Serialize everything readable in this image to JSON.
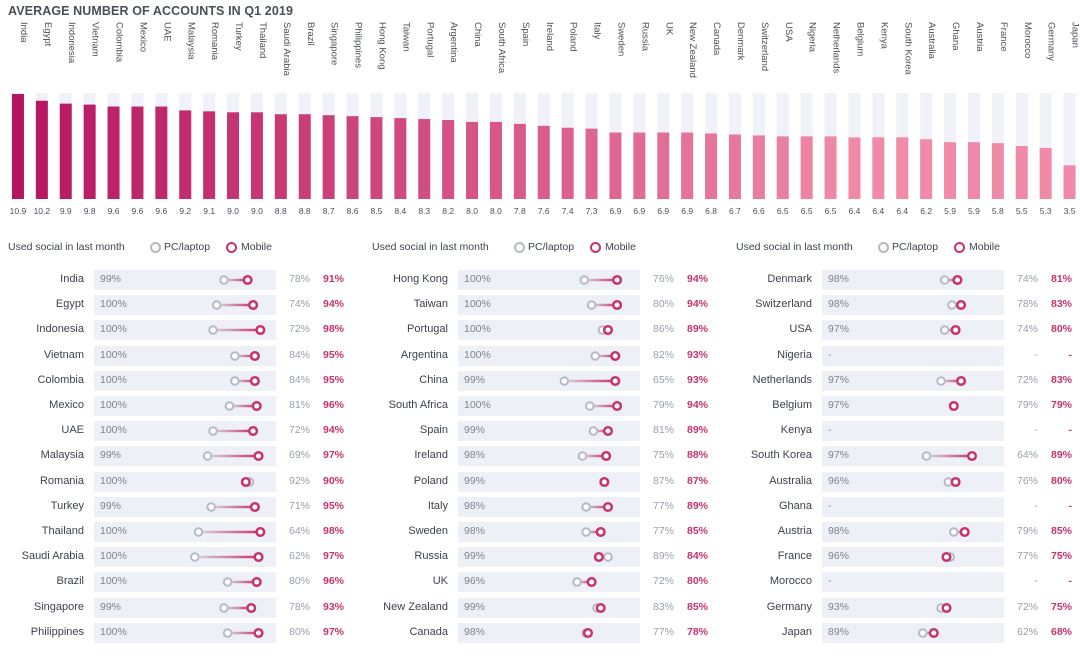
{
  "title": "AVERAGE NUMBER OF ACCOUNTS IN Q1 2019",
  "colors": {
    "bar_dark": "#b5155f",
    "bar_light": "#f08aa8",
    "bar_bg": "#f1f1fa",
    "mobile": "#c8336e",
    "pc": "#b5bac3",
    "track": "#eef0f8"
  },
  "chart_data": [
    {
      "type": "bar",
      "title": "AVERAGE NUMBER OF ACCOUNTS IN Q1 2019",
      "ylim": [
        0,
        10.9
      ],
      "categories": [
        "India",
        "Egypt",
        "Indonesia",
        "Vietnam",
        "Colombia",
        "Mexico",
        "UAE",
        "Malaysia",
        "Romania",
        "Turkey",
        "Thailand",
        "Saudi Arabia",
        "Brazil",
        "Singapore",
        "Philippines",
        "Hong Kong",
        "Taiwan",
        "Portugal",
        "Argentina",
        "China",
        "South Africa",
        "Spain",
        "Ireland",
        "Poland",
        "Italy",
        "Sweden",
        "Russia",
        "UK",
        "New Zealand",
        "Canada",
        "Denmark",
        "Switzerland",
        "USA",
        "Nigeria",
        "Netherlands",
        "Belgium",
        "Kenya",
        "South Korea",
        "Australia",
        "Ghana",
        "Austria",
        "France",
        "Morocco",
        "Germany",
        "Japan"
      ],
      "values": [
        10.9,
        10.2,
        9.9,
        9.8,
        9.6,
        9.6,
        9.6,
        9.2,
        9.1,
        9.0,
        9.0,
        8.8,
        8.8,
        8.7,
        8.6,
        8.5,
        8.4,
        8.3,
        8.2,
        8.0,
        8.0,
        7.8,
        7.6,
        7.4,
        7.3,
        6.9,
        6.9,
        6.9,
        6.9,
        6.8,
        6.7,
        6.6,
        6.5,
        6.5,
        6.5,
        6.4,
        6.4,
        6.4,
        6.2,
        5.9,
        5.9,
        5.8,
        5.5,
        5.3,
        3.5
      ],
      "labels": [
        "10.9",
        "10.2",
        "9.9",
        "9.8",
        "9.6",
        "9.6",
        "9.6",
        "9.2",
        "9.1",
        "9.0",
        "9.0",
        "8.8",
        "8.8",
        "8.7",
        "8.6",
        "8.5",
        "8.4",
        "8.3",
        "8.2",
        "8.0",
        "8.0",
        "7.8",
        "7.6",
        "7.4",
        "7.3",
        "6.9",
        "6.9",
        "6.9",
        "6.9",
        "6.8",
        "6.7",
        "6.6",
        "6.5",
        "6.5",
        "6.5",
        "6.4",
        "6.4",
        "6.4",
        "6.2",
        "5.9",
        "5.9",
        "5.8",
        "5.5",
        "5.3",
        "3.5"
      ]
    },
    {
      "type": "dumbbell",
      "title": "Used social in last month",
      "series": [
        {
          "name": "PC/laptop"
        },
        {
          "name": "Mobile"
        }
      ],
      "x_range": [
        0,
        100
      ]
    }
  ],
  "legend": {
    "title": "Used social in last month",
    "pc": "PC/laptop",
    "mobile": "Mobile"
  },
  "columns": [
    {
      "rows": [
        {
          "country": "India",
          "used": "99%",
          "pc": 78,
          "mobile": 91,
          "pc_label": "78%",
          "mobile_label": "91%"
        },
        {
          "country": "Egypt",
          "used": "100%",
          "pc": 74,
          "mobile": 94,
          "pc_label": "74%",
          "mobile_label": "94%"
        },
        {
          "country": "Indonesia",
          "used": "100%",
          "pc": 72,
          "mobile": 98,
          "pc_label": "72%",
          "mobile_label": "98%"
        },
        {
          "country": "Vietnam",
          "used": "100%",
          "pc": 84,
          "mobile": 95,
          "pc_label": "84%",
          "mobile_label": "95%"
        },
        {
          "country": "Colombia",
          "used": "100%",
          "pc": 84,
          "mobile": 95,
          "pc_label": "84%",
          "mobile_label": "95%"
        },
        {
          "country": "Mexico",
          "used": "100%",
          "pc": 81,
          "mobile": 96,
          "pc_label": "81%",
          "mobile_label": "96%"
        },
        {
          "country": "UAE",
          "used": "100%",
          "pc": 72,
          "mobile": 94,
          "pc_label": "72%",
          "mobile_label": "94%"
        },
        {
          "country": "Malaysia",
          "used": "99%",
          "pc": 69,
          "mobile": 97,
          "pc_label": "69%",
          "mobile_label": "97%"
        },
        {
          "country": "Romania",
          "used": "100%",
          "pc": 92,
          "mobile": 90,
          "pc_label": "92%",
          "mobile_label": "90%"
        },
        {
          "country": "Turkey",
          "used": "99%",
          "pc": 71,
          "mobile": 95,
          "pc_label": "71%",
          "mobile_label": "95%"
        },
        {
          "country": "Thailand",
          "used": "100%",
          "pc": 64,
          "mobile": 98,
          "pc_label": "64%",
          "mobile_label": "98%"
        },
        {
          "country": "Saudi Arabia",
          "used": "100%",
          "pc": 62,
          "mobile": 97,
          "pc_label": "62%",
          "mobile_label": "97%"
        },
        {
          "country": "Brazil",
          "used": "100%",
          "pc": 80,
          "mobile": 96,
          "pc_label": "80%",
          "mobile_label": "96%"
        },
        {
          "country": "Singapore",
          "used": "99%",
          "pc": 78,
          "mobile": 93,
          "pc_label": "78%",
          "mobile_label": "93%"
        },
        {
          "country": "Philippines",
          "used": "100%",
          "pc": 80,
          "mobile": 97,
          "pc_label": "80%",
          "mobile_label": "97%"
        }
      ]
    },
    {
      "rows": [
        {
          "country": "Hong Kong",
          "used": "100%",
          "pc": 76,
          "mobile": 94,
          "pc_label": "76%",
          "mobile_label": "94%"
        },
        {
          "country": "Taiwan",
          "used": "100%",
          "pc": 80,
          "mobile": 94,
          "pc_label": "80%",
          "mobile_label": "94%"
        },
        {
          "country": "Portugal",
          "used": "100%",
          "pc": 86,
          "mobile": 89,
          "pc_label": "86%",
          "mobile_label": "89%"
        },
        {
          "country": "Argentina",
          "used": "100%",
          "pc": 82,
          "mobile": 93,
          "pc_label": "82%",
          "mobile_label": "93%"
        },
        {
          "country": "China",
          "used": "99%",
          "pc": 65,
          "mobile": 93,
          "pc_label": "65%",
          "mobile_label": "93%"
        },
        {
          "country": "South Africa",
          "used": "100%",
          "pc": 79,
          "mobile": 94,
          "pc_label": "79%",
          "mobile_label": "94%"
        },
        {
          "country": "Spain",
          "used": "99%",
          "pc": 81,
          "mobile": 89,
          "pc_label": "81%",
          "mobile_label": "89%"
        },
        {
          "country": "Ireland",
          "used": "98%",
          "pc": 75,
          "mobile": 88,
          "pc_label": "75%",
          "mobile_label": "88%"
        },
        {
          "country": "Poland",
          "used": "99%",
          "pc": 87,
          "mobile": 87,
          "pc_label": "87%",
          "mobile_label": "87%"
        },
        {
          "country": "Italy",
          "used": "98%",
          "pc": 77,
          "mobile": 89,
          "pc_label": "77%",
          "mobile_label": "89%"
        },
        {
          "country": "Sweden",
          "used": "98%",
          "pc": 77,
          "mobile": 85,
          "pc_label": "77%",
          "mobile_label": "85%"
        },
        {
          "country": "Russia",
          "used": "99%",
          "pc": 89,
          "mobile": 84,
          "pc_label": "89%",
          "mobile_label": "84%"
        },
        {
          "country": "UK",
          "used": "96%",
          "pc": 72,
          "mobile": 80,
          "pc_label": "72%",
          "mobile_label": "80%"
        },
        {
          "country": "New Zealand",
          "used": "99%",
          "pc": 83,
          "mobile": 85,
          "pc_label": "83%",
          "mobile_label": "85%"
        },
        {
          "country": "Canada",
          "used": "98%",
          "pc": 77,
          "mobile": 78,
          "pc_label": "77%",
          "mobile_label": "78%"
        }
      ]
    },
    {
      "rows": [
        {
          "country": "Denmark",
          "used": "98%",
          "pc": 74,
          "mobile": 81,
          "pc_label": "74%",
          "mobile_label": "81%"
        },
        {
          "country": "Switzerland",
          "used": "98%",
          "pc": 78,
          "mobile": 83,
          "pc_label": "78%",
          "mobile_label": "83%"
        },
        {
          "country": "USA",
          "used": "97%",
          "pc": 74,
          "mobile": 80,
          "pc_label": "74%",
          "mobile_label": "80%"
        },
        {
          "country": "Nigeria",
          "used": "-",
          "pc": null,
          "mobile": null,
          "pc_label": "-",
          "mobile_label": "-"
        },
        {
          "country": "Netherlands",
          "used": "97%",
          "pc": 72,
          "mobile": 83,
          "pc_label": "72%",
          "mobile_label": "83%"
        },
        {
          "country": "Belgium",
          "used": "97%",
          "pc": 79,
          "mobile": 79,
          "pc_label": "79%",
          "mobile_label": "79%"
        },
        {
          "country": "Kenya",
          "used": "-",
          "pc": null,
          "mobile": null,
          "pc_label": "-",
          "mobile_label": "-"
        },
        {
          "country": "South Korea",
          "used": "97%",
          "pc": 64,
          "mobile": 89,
          "pc_label": "64%",
          "mobile_label": "89%"
        },
        {
          "country": "Australia",
          "used": "96%",
          "pc": 76,
          "mobile": 80,
          "pc_label": "76%",
          "mobile_label": "80%"
        },
        {
          "country": "Ghana",
          "used": "-",
          "pc": null,
          "mobile": null,
          "pc_label": "-",
          "mobile_label": "-"
        },
        {
          "country": "Austria",
          "used": "98%",
          "pc": 79,
          "mobile": 85,
          "pc_label": "79%",
          "mobile_label": "85%"
        },
        {
          "country": "France",
          "used": "96%",
          "pc": 77,
          "mobile": 75,
          "pc_label": "77%",
          "mobile_label": "75%"
        },
        {
          "country": "Morocco",
          "used": "-",
          "pc": null,
          "mobile": null,
          "pc_label": "-",
          "mobile_label": "-"
        },
        {
          "country": "Germany",
          "used": "93%",
          "pc": 72,
          "mobile": 75,
          "pc_label": "72%",
          "mobile_label": "75%"
        },
        {
          "country": "Japan",
          "used": "89%",
          "pc": 62,
          "mobile": 68,
          "pc_label": "62%",
          "mobile_label": "68%"
        }
      ]
    }
  ]
}
